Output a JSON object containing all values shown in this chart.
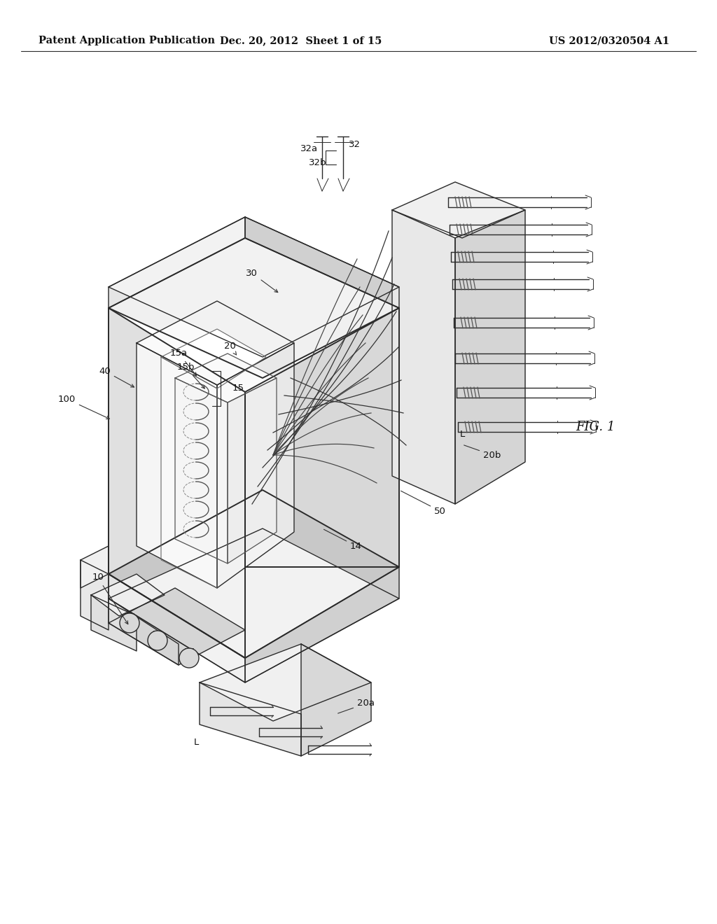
{
  "bg_color": "#ffffff",
  "lc": "#2a2a2a",
  "header_left": "Patent Application Publication",
  "header_center": "Dec. 20, 2012  Sheet 1 of 15",
  "header_right": "US 2012/0320504 A1",
  "fig_label": "FIG. 1",
  "header_fontsize": 10.5,
  "label_fontsize": 9.5,
  "figlabel_fontsize": 13
}
